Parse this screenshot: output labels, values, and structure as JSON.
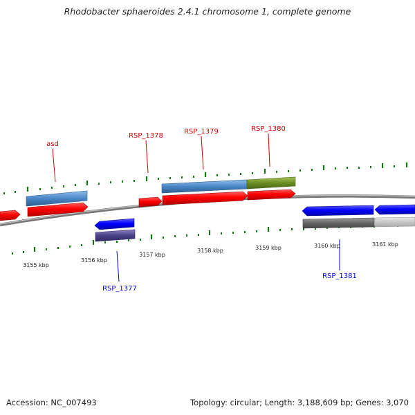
{
  "title": "Rhodobacter sphaeroides 2.4.1 chromosome 1, complete genome",
  "footer": {
    "accession": "Accession: NC_007493",
    "topology": "Topology: circular; Length: 3,188,609 bp; Genes: 3,070"
  },
  "scale_labels": [
    "3155 kbp",
    "3156 kbp",
    "3157 kbp",
    "3158 kbp",
    "3159 kbp",
    "3160 kbp",
    "3161 kbp"
  ],
  "gene_labels": [
    {
      "id": "asd",
      "text": "asd",
      "color": "#cc0000"
    },
    {
      "id": "RSP_1378",
      "text": "RSP_1378",
      "color": "#cc0000"
    },
    {
      "id": "RSP_1379",
      "text": "RSP_1379",
      "color": "#cc0000"
    },
    {
      "id": "RSP_1380",
      "text": "RSP_1380",
      "color": "#cc0000"
    },
    {
      "id": "RSP_1377",
      "text": "RSP_1377",
      "color": "#0000cc"
    },
    {
      "id": "RSP_1381",
      "text": "RSP_1381",
      "color": "#0000cc"
    }
  ],
  "colors": {
    "forward_gene": "#ff0000",
    "reverse_gene": "#0000ff",
    "feature_blue": "#4a86c6",
    "feature_green": "#6b8e23",
    "feature_purple": "#4b4288",
    "feature_gray": "#666666",
    "feature_lightgray": "#c8c8c8",
    "backbone": "#888888",
    "ticks": "#117711"
  }
}
